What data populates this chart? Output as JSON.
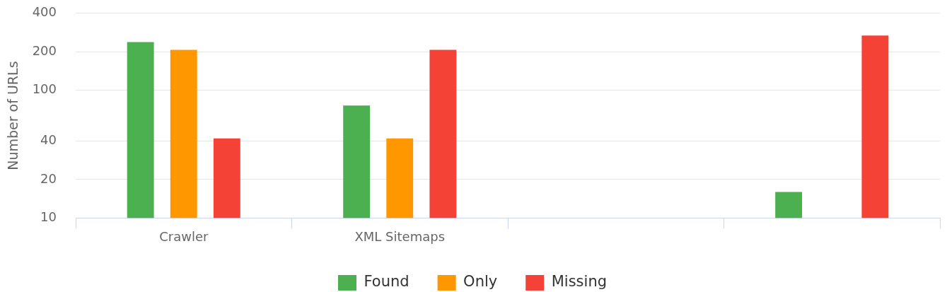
{
  "chart_data": {
    "type": "bar",
    "ylabel": "Number of URLs",
    "categories": [
      "Crawler",
      "XML Sitemaps",
      null,
      null
    ],
    "series": [
      {
        "name": "Found",
        "color": "#4caf50",
        "values": [
          238,
          76,
          null,
          16
        ]
      },
      {
        "name": "Only",
        "color": "#ff9800",
        "values": [
          207,
          42,
          null,
          null
        ]
      },
      {
        "name": "Missing",
        "color": "#f44336",
        "values": [
          42,
          207,
          null,
          268
        ]
      }
    ],
    "log": true,
    "ylim": [
      10,
      400
    ],
    "yticks": [
      10,
      20,
      40,
      100,
      200,
      400
    ],
    "grid": "y",
    "legend": "bottom"
  }
}
